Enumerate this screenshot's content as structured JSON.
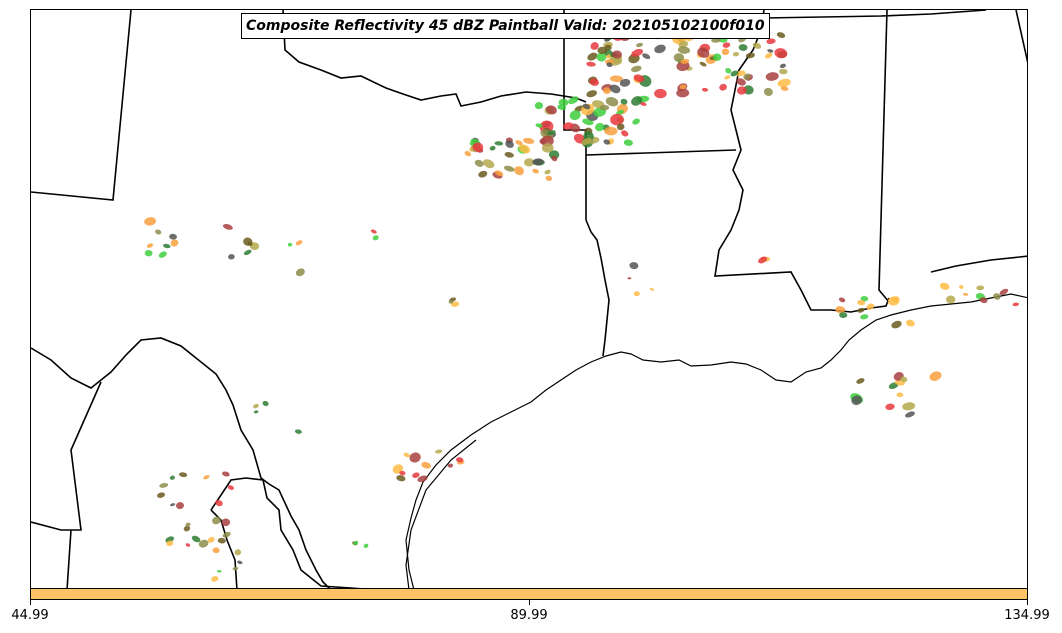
{
  "title": "Composite Reflectivity 45 dBZ Paintball Valid: 202105102100f010",
  "colorbar": {
    "color": "#ffc266",
    "ticks": [
      "44.99",
      "89.99",
      "134.99"
    ]
  },
  "colors": {
    "red": "#e8383d",
    "green": "#3ecf3e",
    "orange": "#f9a03f",
    "yellow_orange": "#ffbb44",
    "olive": "#8c8c4a",
    "khaki": "#b3a84c",
    "dark_gray": "#555555",
    "brown_red": "#a84040",
    "dark_green": "#2e7d32",
    "dark_olive": "#6b5a1e"
  }
}
